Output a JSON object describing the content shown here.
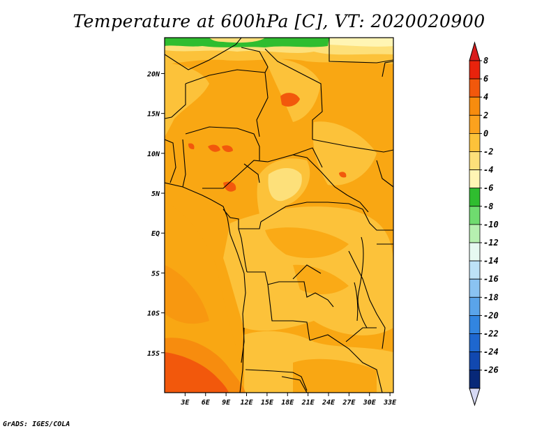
{
  "title": "Temperature at 600hPa [C], VT: 2020020900",
  "credit": "GrADS: IGES/COLA",
  "map": {
    "lon_range": [
      0,
      33.5
    ],
    "lat_range": [
      -20,
      24.5
    ],
    "lon_ticks": [
      {
        "value": 3,
        "label": "3E"
      },
      {
        "value": 6,
        "label": "6E"
      },
      {
        "value": 9,
        "label": "9E"
      },
      {
        "value": 12,
        "label": "12E"
      },
      {
        "value": 15,
        "label": "15E"
      },
      {
        "value": 18,
        "label": "18E"
      },
      {
        "value": 21,
        "label": "21E"
      },
      {
        "value": 24,
        "label": "24E"
      },
      {
        "value": 27,
        "label": "27E"
      },
      {
        "value": 30,
        "label": "30E"
      },
      {
        "value": 33,
        "label": "33E"
      }
    ],
    "lat_ticks": [
      {
        "value": 20,
        "label": "20N"
      },
      {
        "value": 15,
        "label": "15N"
      },
      {
        "value": 10,
        "label": "10N"
      },
      {
        "value": 5,
        "label": "5N"
      },
      {
        "value": 0,
        "label": "EQ"
      },
      {
        "value": -5,
        "label": "5S"
      },
      {
        "value": -10,
        "label": "10S"
      },
      {
        "value": -15,
        "label": "15S"
      }
    ]
  },
  "colorbar": {
    "labels": [
      "8",
      "6",
      "4",
      "2",
      "0",
      "-2",
      "-4",
      "-6",
      "-8",
      "-10",
      "-12",
      "-14",
      "-16",
      "-18",
      "-20",
      "-22",
      "-24",
      "-26"
    ],
    "colors": [
      "#e8230c",
      "#f2580c",
      "#f78c0e",
      "#fba21e",
      "#fcc23a",
      "#fde07a",
      "#fff5b4",
      "#2fbd2f",
      "#6fdc6f",
      "#b6f0b0",
      "#e6f9f1",
      "#bde2f7",
      "#8ac3f2",
      "#5aa4ea",
      "#3285e0",
      "#1e67cf",
      "#1148b0",
      "#072878"
    ],
    "top_color": "#d91d1d",
    "bottom_color": "#d6d9f4"
  }
}
